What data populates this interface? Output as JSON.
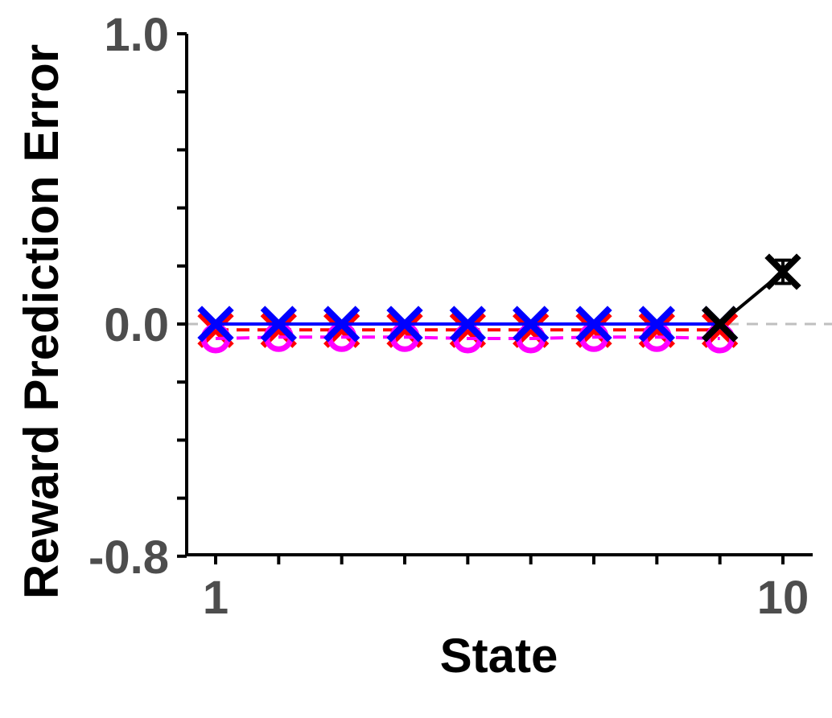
{
  "chart_data": {
    "type": "line",
    "title": "",
    "xlabel": "State",
    "ylabel": "Reward Prediction Error",
    "xlim": [
      0.5,
      10.5
    ],
    "ylim": [
      -0.8,
      1.0
    ],
    "x_tick_labels": [
      {
        "value": 1,
        "label": "1"
      },
      {
        "value": 10,
        "label": "10"
      }
    ],
    "x_ticks": [
      1,
      2,
      3,
      4,
      5,
      6,
      7,
      8,
      9,
      10
    ],
    "y_tick_labels": [
      {
        "value": 1.0,
        "label": "1.0"
      },
      {
        "value": 0.0,
        "label": "0.0"
      },
      {
        "value": -0.8,
        "label": "-0.8"
      }
    ],
    "y_ticks": [
      1.0,
      0.8,
      0.6,
      0.4,
      0.2,
      0.0,
      -0.2,
      -0.4,
      -0.6,
      -0.8
    ],
    "reference_line": {
      "y": 0.0,
      "color": "#bfbfbf",
      "style": "dashed"
    },
    "grid": false,
    "series": [
      {
        "color": "#ff0000",
        "line_style": "dashed",
        "marker": "x",
        "x": [
          1,
          2,
          3,
          4,
          5,
          6,
          7,
          8,
          9
        ],
        "y": [
          -0.02,
          -0.02,
          -0.02,
          -0.02,
          -0.02,
          -0.02,
          -0.02,
          -0.02,
          -0.02
        ]
      },
      {
        "color": "#ff00ff",
        "line_style": "dashed",
        "marker": "o",
        "x": [
          1,
          2,
          3,
          4,
          5,
          6,
          7,
          8,
          9
        ],
        "y": [
          -0.05,
          -0.045,
          -0.045,
          -0.045,
          -0.05,
          -0.05,
          -0.045,
          -0.045,
          -0.05
        ]
      },
      {
        "color": "#0000ff",
        "line_style": "solid",
        "marker": "x",
        "x": [
          1,
          2,
          3,
          4,
          5,
          6,
          7,
          8,
          9
        ],
        "y": [
          0.0,
          0.0,
          0.0,
          0.0,
          0.0,
          0.0,
          0.0,
          0.0,
          0.0
        ]
      },
      {
        "color": "#000000",
        "line_style": "solid",
        "marker": "x",
        "x": [
          9,
          10
        ],
        "y": [
          0.0,
          0.18
        ],
        "error": [
          0,
          0.04
        ]
      }
    ]
  }
}
